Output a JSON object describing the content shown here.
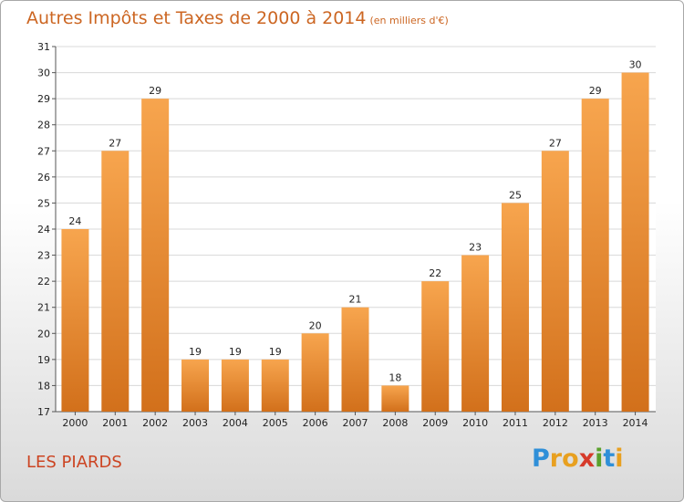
{
  "chart_data": {
    "type": "bar",
    "title": "Autres Impôts et Taxes de 2000 à 2014",
    "unit": "(en milliers d'€)",
    "categories": [
      "2000",
      "2001",
      "2002",
      "2003",
      "2004",
      "2005",
      "2006",
      "2007",
      "2008",
      "2009",
      "2010",
      "2011",
      "2012",
      "2013",
      "2014"
    ],
    "values": [
      24,
      27,
      29,
      19,
      19,
      19,
      20,
      21,
      18,
      22,
      23,
      25,
      27,
      29,
      30
    ],
    "ylim": [
      17,
      31
    ],
    "yticks": [
      17,
      18,
      19,
      20,
      21,
      22,
      23,
      24,
      25,
      26,
      27,
      28,
      29,
      30,
      31
    ],
    "grid": true,
    "bar_color_light": "#f7a54e",
    "bar_color_dark": "#d2701b"
  },
  "subject": "LES PIARDS",
  "logo": {
    "letters": [
      "P",
      "r",
      "o",
      "x",
      "i",
      "t",
      "i"
    ],
    "colors": [
      "#2f8fd8",
      "#e8a020",
      "#e8a020",
      "#d63a2a",
      "#5aa12b",
      "#2f8fd8",
      "#e8a020"
    ]
  }
}
